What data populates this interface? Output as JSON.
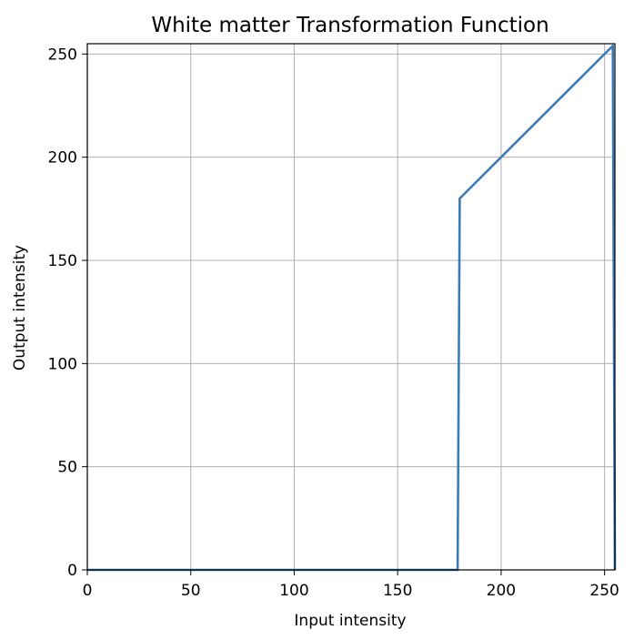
{
  "chart_data": {
    "type": "line",
    "title": "White matter Transformation Function",
    "xlabel": "Input intensity",
    "ylabel": "Output intensity",
    "xlim": [
      0,
      255
    ],
    "ylim": [
      0,
      255
    ],
    "grid": true,
    "legend": "none",
    "x_ticks": [
      0,
      50,
      100,
      150,
      200,
      250
    ],
    "y_ticks": [
      0,
      50,
      100,
      150,
      200,
      250
    ],
    "x_tick_labels": [
      "0",
      "50",
      "100",
      "150",
      "200",
      "250"
    ],
    "y_tick_labels": [
      "0",
      "50",
      "100",
      "150",
      "200",
      "250"
    ],
    "series": [
      {
        "color": "#3d7ab8",
        "x": [
          0,
          179,
          180,
          253,
          254,
          255
        ],
        "y": [
          0,
          0,
          180,
          253,
          254,
          0
        ]
      }
    ]
  }
}
